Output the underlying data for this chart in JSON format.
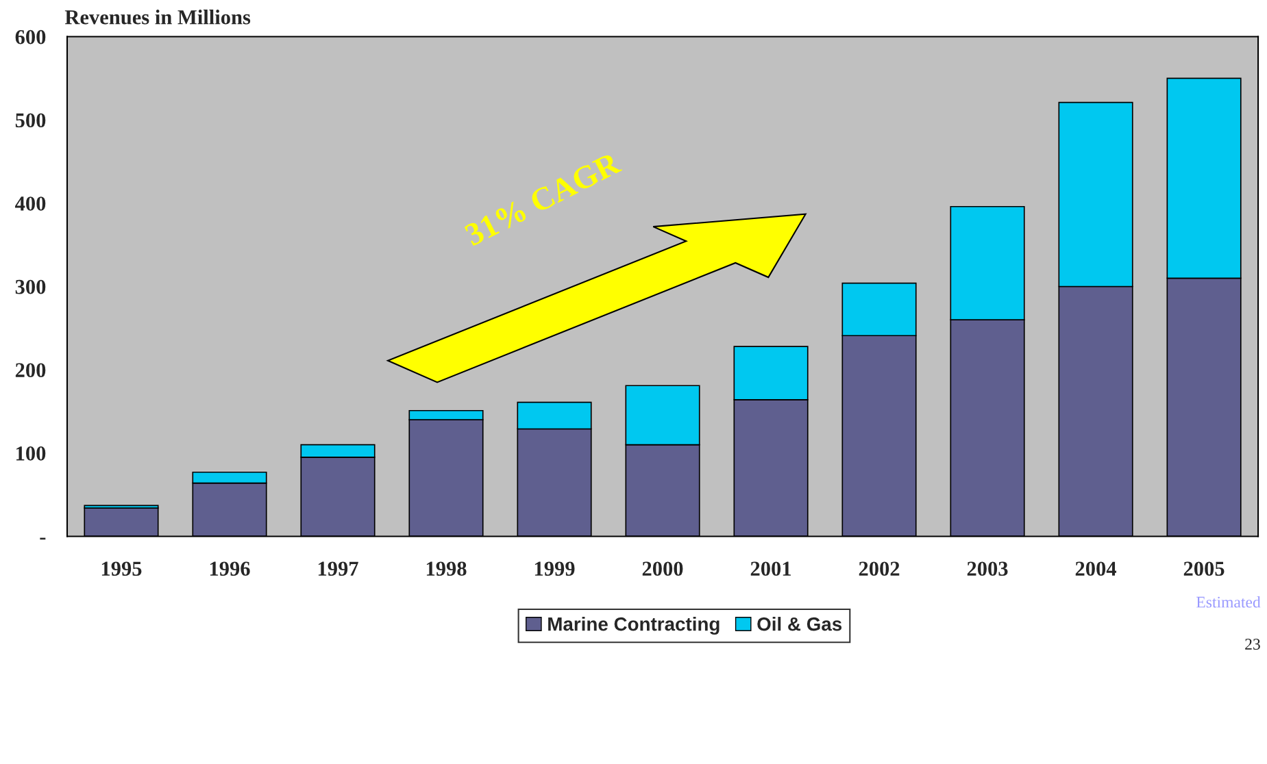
{
  "chart_data": {
    "type": "bar",
    "title": "Revenues in Millions",
    "stacked": true,
    "categories": [
      "1995",
      "1996",
      "1997",
      "1998",
      "1999",
      "2000",
      "2001",
      "2002",
      "2003",
      "2004",
      "2005"
    ],
    "series": [
      {
        "name": "Marine Contracting",
        "color": "#5f5f8f",
        "values": [
          34,
          64,
          95,
          140,
          129,
          110,
          164,
          241,
          260,
          300,
          310
        ]
      },
      {
        "name": "Oil & Gas",
        "color": "#00c8f0",
        "values": [
          3,
          13,
          15,
          11,
          32,
          71,
          64,
          63,
          136,
          221,
          240
        ]
      }
    ],
    "ylim": [
      0,
      600
    ],
    "yticks": [
      {
        "value": 0,
        "label": "-"
      },
      100,
      200,
      300,
      400,
      500,
      600
    ],
    "grid": false,
    "legend": "bottom",
    "annotations": [
      "31% CAGR",
      "Estimated",
      "23"
    ]
  }
}
